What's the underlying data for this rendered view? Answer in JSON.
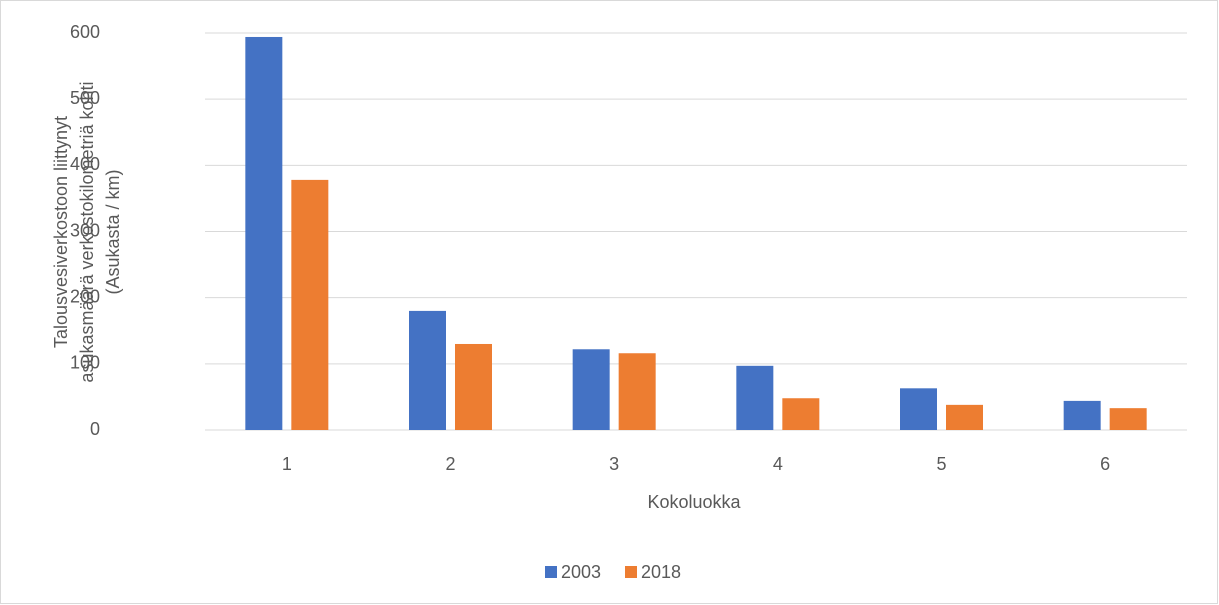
{
  "chart_data": {
    "type": "bar",
    "xlabel": "Kokoluokka",
    "ylabel": [
      "Talousvesiverkostoon liittynyt",
      "asukasmäärä verkostokilometriä kohti",
      "(Asukasta / km)"
    ],
    "categories": [
      "1",
      "2",
      "3",
      "4",
      "5",
      "6"
    ],
    "series": [
      {
        "name": "2003",
        "color": "#4472c4",
        "values": [
          594,
          180,
          122,
          97,
          63,
          44
        ]
      },
      {
        "name": "2018",
        "color": "#ed7d31",
        "values": [
          378,
          130,
          116,
          48,
          38,
          33
        ]
      }
    ],
    "ylim": [
      0,
      600
    ],
    "yticks": [
      0,
      100,
      200,
      300,
      400,
      500,
      600
    ],
    "grid": true,
    "legend": "bottom"
  }
}
